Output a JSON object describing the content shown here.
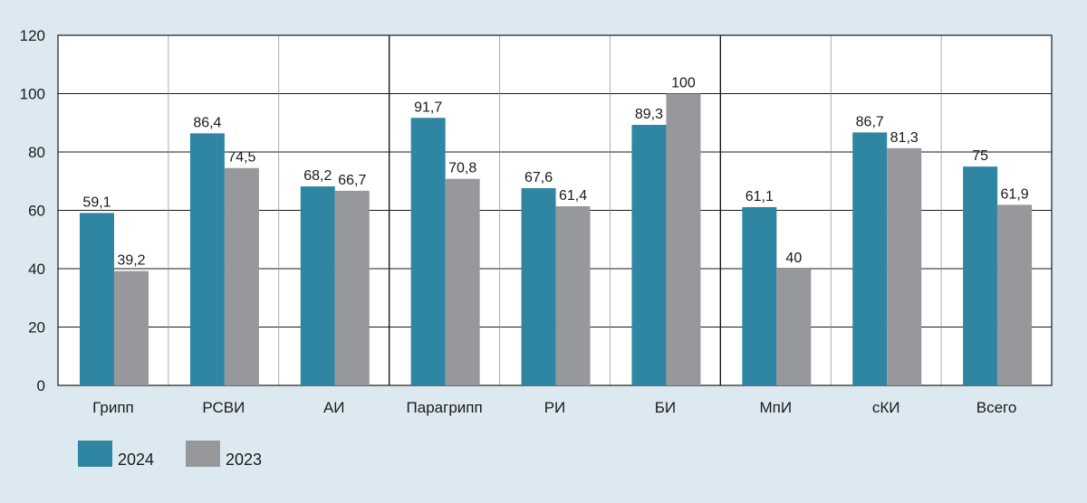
{
  "chart_data": {
    "type": "bar",
    "categories": [
      "Грипп",
      "РСВИ",
      "АИ",
      "Парагрипп",
      "РИ",
      "БИ",
      "МпИ",
      "сКИ",
      "Всего"
    ],
    "series": [
      {
        "name": "2024",
        "color": "#2e86a3",
        "values": [
          59.1,
          86.4,
          68.2,
          91.7,
          67.6,
          89.3,
          61.1,
          86.7,
          75
        ],
        "labels": [
          "59,1",
          "86,4",
          "68,2",
          "91,7",
          "67,6",
          "89,3",
          "61,1",
          "86,7",
          "75"
        ]
      },
      {
        "name": "2023",
        "color": "#97989c",
        "values": [
          39.2,
          74.5,
          66.7,
          70.8,
          61.4,
          100,
          40,
          81.3,
          61.9
        ],
        "labels": [
          "39,2",
          "74,5",
          "66,7",
          "70,8",
          "61,4",
          "100",
          "40",
          "81,3",
          "61,9"
        ]
      }
    ],
    "yticks": [
      "0",
      "20",
      "40",
      "60",
      "80",
      "100",
      "120"
    ],
    "ylim": [
      0,
      120
    ],
    "grid": true,
    "legend_position": "bottom-left",
    "background_color": "#dde9f1",
    "plot_background_color": "#ffffff"
  }
}
